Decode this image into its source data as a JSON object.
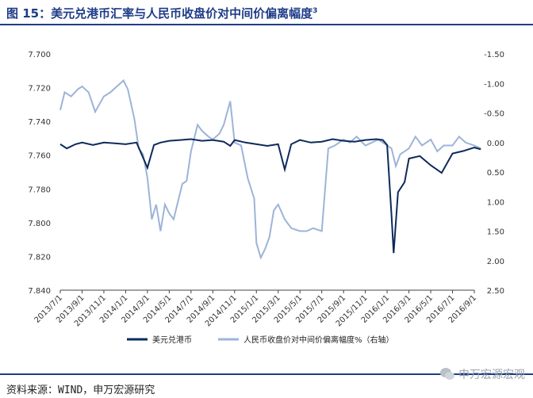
{
  "header": {
    "title": "图 15：美元兑港币汇率与人民币收盘价对中间价偏离幅度",
    "title_note": "3"
  },
  "footer": {
    "source": "资料来源：WIND，申万宏源研究",
    "watermark": "申万宏源宏观"
  },
  "colors": {
    "primary": "#0d2a5c",
    "secondary": "#9db4d8",
    "accent": "#1f3c88"
  },
  "chart_data": {
    "type": "line",
    "title": "",
    "xlabel": "",
    "ylabel": "",
    "x_tick_labels": [
      "2013/7/1",
      "2013/9/1",
      "2013/11/1",
      "2014/1/1",
      "2014/3/1",
      "2014/5/1",
      "2014/7/1",
      "2014/9/1",
      "2014/11/1",
      "2015/1/1",
      "2015/3/1",
      "2015/5/1",
      "2015/7/1",
      "2015/9/1",
      "2015/11/1",
      "2016/1/1",
      "2016/3/1",
      "2016/5/1",
      "2016/7/1",
      "2016/9/1"
    ],
    "y_left": {
      "ticks": [
        "7.700",
        "7.720",
        "7.740",
        "7.760",
        "7.780",
        "7.800",
        "7.820",
        "7.840"
      ],
      "ylim": [
        7.7,
        7.84
      ],
      "inverted": true
    },
    "y_right": {
      "ticks": [
        "-1.50",
        "-1.00",
        "-0.50",
        "0.00",
        "0.50",
        "1.00",
        "1.50",
        "2.00",
        "2.50"
      ],
      "ylim": [
        -1.5,
        2.5
      ]
    },
    "grid": false,
    "legend_position": "bottom",
    "series": [
      {
        "name": "美元兑港币",
        "axis": "left",
        "color": "#0d2a5c",
        "x": [
          0,
          0.3,
          0.7,
          1,
          1.5,
          2,
          2.5,
          3,
          3.5,
          4,
          4.3,
          4.6,
          5,
          5.5,
          6,
          6.5,
          7,
          7.5,
          7.8,
          8,
          8.5,
          9,
          9.5,
          10,
          10.3,
          10.6,
          11,
          11.5,
          12,
          12.5,
          13,
          13.5,
          14,
          14.5,
          14.8,
          15,
          15.2,
          15.3,
          15.5,
          15.8,
          16,
          16.5,
          17,
          17.5,
          18,
          18.5,
          19,
          19.3
        ],
        "values": [
          7.7535,
          7.756,
          7.7535,
          7.7525,
          7.754,
          7.7525,
          7.753,
          7.7535,
          7.7525,
          7.7675,
          7.754,
          7.7525,
          7.7515,
          7.751,
          7.7505,
          7.7515,
          7.751,
          7.752,
          7.7545,
          7.751,
          7.7525,
          7.7535,
          7.7545,
          7.7535,
          7.7685,
          7.7535,
          7.751,
          7.7525,
          7.752,
          7.7505,
          7.7515,
          7.752,
          7.751,
          7.7505,
          7.751,
          7.754,
          7.7955,
          7.818,
          7.782,
          7.776,
          7.762,
          7.7605,
          7.766,
          7.7705,
          7.759,
          7.7575,
          7.7555,
          7.7565
        ]
      },
      {
        "name": "人民币收盘价对中间价偏离幅度%（右轴）",
        "axis": "right",
        "color": "#9db4d8",
        "x": [
          0,
          0.2,
          0.5,
          0.8,
          1,
          1.3,
          1.6,
          2,
          2.3,
          2.6,
          2.9,
          3.1,
          3.4,
          3.6,
          3.8,
          4,
          4.2,
          4.4,
          4.6,
          4.8,
          5,
          5.2,
          5.4,
          5.6,
          5.8,
          6,
          6.3,
          6.5,
          6.8,
          7,
          7.3,
          7.5,
          7.8,
          8,
          8.3,
          8.6,
          8.9,
          9,
          9.2,
          9.4,
          9.6,
          9.8,
          10,
          10.3,
          10.6,
          11,
          11.3,
          11.6,
          12,
          12.3,
          12.6,
          13,
          13.3,
          13.6,
          14,
          14.3,
          14.6,
          15,
          15.2,
          15.4,
          15.6,
          16,
          16.3,
          16.6,
          17,
          17.3,
          17.6,
          18,
          18.3,
          18.6,
          19,
          19.3
        ],
        "values": [
          -0.55,
          -0.85,
          -0.78,
          -0.9,
          -0.95,
          -0.85,
          -0.52,
          -0.78,
          -0.85,
          -0.95,
          -1.05,
          -0.9,
          -0.4,
          0.1,
          0.2,
          0.6,
          1.3,
          1.05,
          1.5,
          1.05,
          1.2,
          1.3,
          1.0,
          0.7,
          0.65,
          0.15,
          -0.3,
          -0.2,
          -0.1,
          -0.05,
          -0.15,
          -0.3,
          -0.7,
          0.0,
          0.05,
          0.6,
          0.95,
          1.7,
          1.95,
          1.8,
          1.6,
          1.15,
          1.05,
          1.3,
          1.45,
          1.5,
          1.5,
          1.45,
          1.5,
          0.1,
          0.05,
          -0.05,
          0.0,
          -0.1,
          0.05,
          0.0,
          -0.05,
          0.05,
          0.1,
          0.4,
          0.2,
          0.1,
          -0.1,
          0.05,
          -0.05,
          0.15,
          0.05,
          0.05,
          -0.1,
          0.0,
          0.05,
          0.1
        ]
      }
    ]
  }
}
